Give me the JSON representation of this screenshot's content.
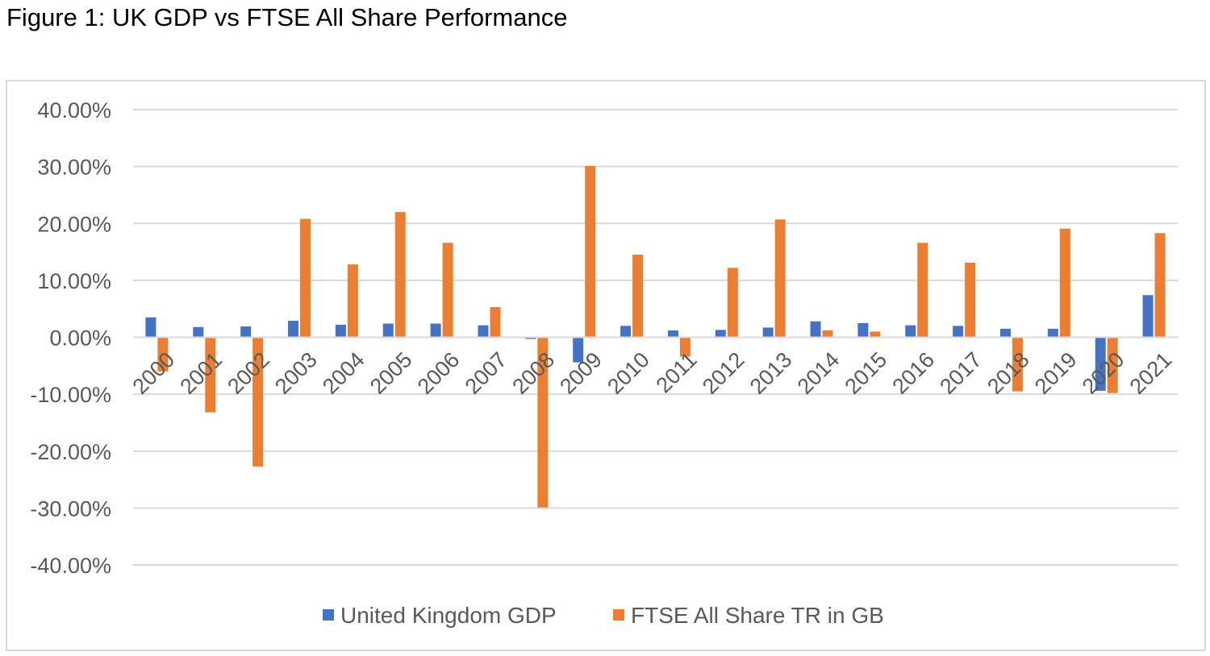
{
  "figure": {
    "title": "Figure 1: UK GDP vs FTSE All Share Performance"
  },
  "colors": {
    "gdp": "#4472C4",
    "ftse": "#ED7D31",
    "grid": "#d9d9d9",
    "text": "#595959"
  },
  "chart_data": {
    "type": "bar",
    "title": "",
    "xlabel": "",
    "ylabel": "",
    "ylim": [
      -0.4,
      0.4
    ],
    "yticks": [
      0.4,
      0.3,
      0.2,
      0.1,
      0.0,
      -0.1,
      -0.2,
      -0.3,
      -0.4
    ],
    "ytick_labels": [
      "40.00%",
      "30.00%",
      "20.00%",
      "10.00%",
      "0.00%",
      "-10.00%",
      "-20.00%",
      "-30.00%",
      "-40.00%"
    ],
    "grid": true,
    "legend_position": "bottom",
    "categories": [
      "2000",
      "2001",
      "2002",
      "2003",
      "2004",
      "2005",
      "2006",
      "2007",
      "2008",
      "2009",
      "2010",
      "2011",
      "2012",
      "2013",
      "2014",
      "2015",
      "2016",
      "2017",
      "2018",
      "2019",
      "2020",
      "2021"
    ],
    "series": [
      {
        "name": "United Kingdom GDP",
        "color_key": "gdp",
        "values": [
          0.035,
          0.018,
          0.019,
          0.029,
          0.022,
          0.024,
          0.024,
          0.021,
          -0.003,
          -0.044,
          0.02,
          0.012,
          0.013,
          0.017,
          0.028,
          0.025,
          0.021,
          0.02,
          0.015,
          0.015,
          -0.094,
          0.074
        ]
      },
      {
        "name": "FTSE All Share TR in GB",
        "color_key": "ftse",
        "values": [
          -0.06,
          -0.132,
          -0.227,
          0.208,
          0.128,
          0.22,
          0.166,
          0.053,
          -0.299,
          0.301,
          0.145,
          -0.034,
          0.122,
          0.207,
          0.012,
          0.01,
          0.166,
          0.131,
          -0.095,
          0.191,
          -0.098,
          0.183
        ]
      }
    ]
  }
}
